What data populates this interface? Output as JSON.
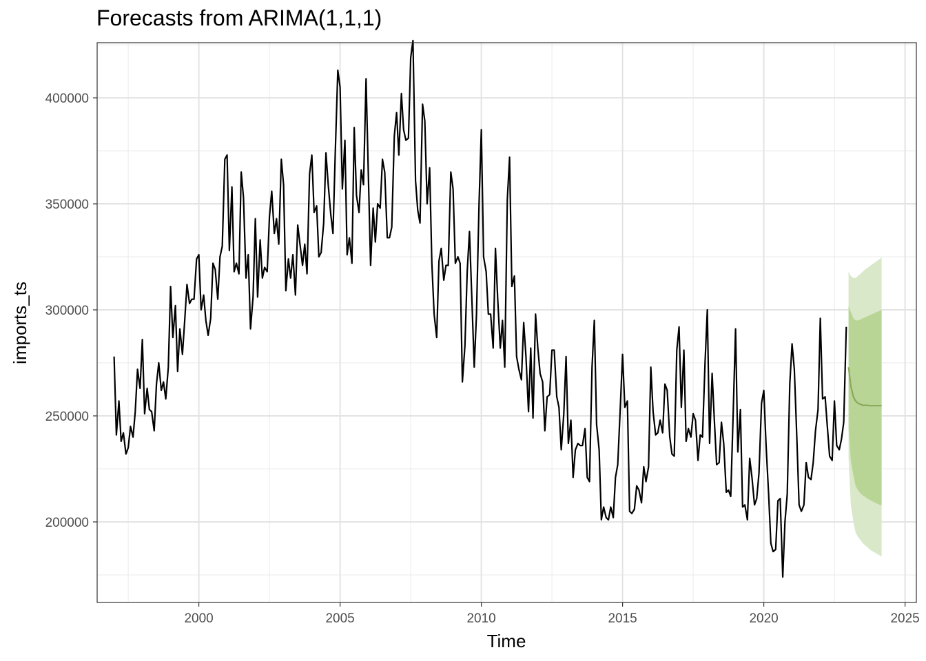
{
  "chart_data": {
    "type": "line",
    "title": "Forecasts from ARIMA(1,1,1)",
    "xlabel": "Time",
    "ylabel": "imports_ts",
    "xlim": [
      1996.4,
      2025.4
    ],
    "ylim": [
      162000,
      426000
    ],
    "x_ticks": [
      2000,
      2005,
      2010,
      2015,
      2020,
      2025
    ],
    "x_tick_labels": [
      "2000",
      "2005",
      "2010",
      "2015",
      "2020",
      "2025"
    ],
    "y_ticks": [
      200000,
      250000,
      300000,
      350000,
      400000
    ],
    "y_tick_labels": [
      "200000",
      "250000",
      "300000",
      "350000",
      "400000"
    ],
    "grid": true,
    "legend": "none",
    "colors": {
      "actual": "#000000",
      "forecast_line": "#8aa85a",
      "band_80": "#b9d596",
      "band_95": "#d9e8c8"
    },
    "series": [
      {
        "role": "actual",
        "x": [
          1997.0,
          1997.08,
          1997.17,
          1997.25,
          1997.33,
          1997.42,
          1997.5,
          1997.58,
          1997.67,
          1997.75,
          1997.83,
          1997.92,
          1998.0,
          1998.08,
          1998.17,
          1998.25,
          1998.33,
          1998.42,
          1998.5,
          1998.58,
          1998.67,
          1998.75,
          1998.83,
          1998.92,
          1999.0,
          1999.08,
          1999.17,
          1999.25,
          1999.33,
          1999.42,
          1999.5,
          1999.58,
          1999.67,
          1999.75,
          1999.83,
          1999.92,
          2000.0,
          2000.08,
          2000.17,
          2000.25,
          2000.33,
          2000.42,
          2000.5,
          2000.58,
          2000.67,
          2000.75,
          2000.83,
          2000.92,
          2001.0,
          2001.08,
          2001.17,
          2001.25,
          2001.33,
          2001.42,
          2001.5,
          2001.58,
          2001.67,
          2001.75,
          2001.83,
          2001.92,
          2002.0,
          2002.08,
          2002.17,
          2002.25,
          2002.33,
          2002.42,
          2002.5,
          2002.58,
          2002.67,
          2002.75,
          2002.83,
          2002.92,
          2003.0,
          2003.08,
          2003.17,
          2003.25,
          2003.33,
          2003.42,
          2003.5,
          2003.58,
          2003.67,
          2003.75,
          2003.83,
          2003.92,
          2004.0,
          2004.08,
          2004.17,
          2004.25,
          2004.33,
          2004.42,
          2004.5,
          2004.58,
          2004.67,
          2004.75,
          2004.83,
          2004.92,
          2005.0,
          2005.08,
          2005.17,
          2005.25,
          2005.33,
          2005.42,
          2005.5,
          2005.58,
          2005.67,
          2005.75,
          2005.83,
          2005.92,
          2006.0,
          2006.08,
          2006.17,
          2006.25,
          2006.33,
          2006.42,
          2006.5,
          2006.58,
          2006.67,
          2006.75,
          2006.83,
          2006.92,
          2007.0,
          2007.08,
          2007.17,
          2007.25,
          2007.33,
          2007.42,
          2007.5,
          2007.58,
          2007.67,
          2007.75,
          2007.83,
          2007.92,
          2008.0,
          2008.08,
          2008.17,
          2008.25,
          2008.33,
          2008.42,
          2008.5,
          2008.58,
          2008.67,
          2008.75,
          2008.83,
          2008.92,
          2009.0,
          2009.08,
          2009.17,
          2009.25,
          2009.33,
          2009.42,
          2009.5,
          2009.58,
          2009.67,
          2009.75,
          2009.83,
          2009.92,
          2010.0,
          2010.08,
          2010.17,
          2010.25,
          2010.33,
          2010.42,
          2010.5,
          2010.58,
          2010.67,
          2010.75,
          2010.83,
          2010.92,
          2011.0,
          2011.08,
          2011.17,
          2011.25,
          2011.33,
          2011.42,
          2011.5,
          2011.58,
          2011.67,
          2011.75,
          2011.83,
          2011.92,
          2012.0,
          2012.08,
          2012.17,
          2012.25,
          2012.33,
          2012.42,
          2012.5,
          2012.58,
          2012.67,
          2012.75,
          2012.83,
          2012.92,
          2013.0,
          2013.08,
          2013.17,
          2013.25,
          2013.33,
          2013.42,
          2013.5,
          2013.58,
          2013.67,
          2013.75,
          2013.83,
          2013.92,
          2014.0,
          2014.08,
          2014.17,
          2014.25,
          2014.33,
          2014.42,
          2014.5,
          2014.58,
          2014.67,
          2014.75,
          2014.83,
          2014.92,
          2015.0,
          2015.08,
          2015.17,
          2015.25,
          2015.33,
          2015.42,
          2015.5,
          2015.58,
          2015.67,
          2015.75,
          2015.83,
          2015.92,
          2016.0,
          2016.08,
          2016.17,
          2016.25,
          2016.33,
          2016.42,
          2016.5,
          2016.58,
          2016.67,
          2016.75,
          2016.83,
          2016.92,
          2017.0,
          2017.08,
          2017.17,
          2017.25,
          2017.33,
          2017.42,
          2017.5,
          2017.58,
          2017.67,
          2017.75,
          2017.83,
          2017.92,
          2018.0,
          2018.08,
          2018.17,
          2018.25,
          2018.33,
          2018.42,
          2018.5,
          2018.58,
          2018.67,
          2018.75,
          2018.83,
          2018.92,
          2019.0,
          2019.08,
          2019.17,
          2019.25,
          2019.33,
          2019.42,
          2019.5,
          2019.58,
          2019.67,
          2019.75,
          2019.83,
          2019.92,
          2020.0,
          2020.08,
          2020.17,
          2020.25,
          2020.33,
          2020.42,
          2020.5,
          2020.58,
          2020.67,
          2020.75,
          2020.83,
          2020.92,
          2021.0,
          2021.08,
          2021.17,
          2021.25,
          2021.33,
          2021.42,
          2021.5,
          2021.58,
          2021.67,
          2021.75,
          2021.83,
          2021.92,
          2022.0,
          2022.08,
          2022.17,
          2022.25,
          2022.33,
          2022.42,
          2022.5,
          2022.58,
          2022.67,
          2022.75,
          2022.83,
          2022.92
        ],
        "y": [
          278000,
          241000,
          257000,
          238000,
          242000,
          232000,
          235000,
          245000,
          240000,
          252000,
          272000,
          263000,
          286000,
          251000,
          263000,
          253000,
          252000,
          243000,
          265000,
          275000,
          262000,
          266000,
          258000,
          273000,
          311000,
          287000,
          302000,
          271000,
          291000,
          279000,
          295000,
          312000,
          303000,
          305000,
          305000,
          324000,
          326000,
          300000,
          307000,
          295000,
          288000,
          296000,
          322000,
          319000,
          305000,
          325000,
          330000,
          371000,
          373000,
          328000,
          358000,
          318000,
          322000,
          317000,
          365000,
          353000,
          315000,
          326000,
          291000,
          306000,
          343000,
          306000,
          333000,
          315000,
          320000,
          318000,
          344000,
          356000,
          336000,
          343000,
          331000,
          371000,
          359000,
          309000,
          324000,
          315000,
          326000,
          307000,
          340000,
          331000,
          321000,
          331000,
          317000,
          364000,
          373000,
          346000,
          349000,
          325000,
          327000,
          341000,
          374000,
          359000,
          345000,
          336000,
          374000,
          413000,
          405000,
          357000,
          380000,
          326000,
          334000,
          322000,
          386000,
          354000,
          346000,
          366000,
          359000,
          409000,
          364000,
          321000,
          348000,
          332000,
          350000,
          348000,
          371000,
          365000,
          334000,
          334000,
          339000,
          382000,
          393000,
          373000,
          402000,
          385000,
          380000,
          381000,
          419000,
          427000,
          361000,
          347000,
          341000,
          397000,
          389000,
          350000,
          367000,
          322000,
          298000,
          287000,
          323000,
          329000,
          314000,
          321000,
          321000,
          365000,
          357000,
          322000,
          325000,
          322000,
          266000,
          283000,
          318000,
          337000,
          303000,
          273000,
          298000,
          350000,
          385000,
          325000,
          318000,
          298000,
          298000,
          282000,
          329000,
          305000,
          282000,
          295000,
          273000,
          352000,
          372000,
          311000,
          316000,
          278000,
          272000,
          267000,
          294000,
          278000,
          252000,
          282000,
          249000,
          298000,
          282000,
          270000,
          266000,
          243000,
          259000,
          260000,
          281000,
          281000,
          259000,
          254000,
          234000,
          251000,
          278000,
          237000,
          248000,
          221000,
          234000,
          237000,
          236000,
          236000,
          244000,
          221000,
          219000,
          273000,
          295000,
          246000,
          234000,
          201000,
          207000,
          202000,
          201000,
          207000,
          202000,
          221000,
          227000,
          254000,
          279000,
          254000,
          257000,
          205000,
          204000,
          206000,
          217000,
          215000,
          209000,
          226000,
          219000,
          226000,
          273000,
          252000,
          241000,
          242000,
          248000,
          242000,
          265000,
          262000,
          240000,
          232000,
          231000,
          281000,
          292000,
          254000,
          281000,
          238000,
          244000,
          240000,
          251000,
          248000,
          229000,
          241000,
          240000,
          275000,
          300000,
          237000,
          270000,
          248000,
          227000,
          228000,
          247000,
          237000,
          214000,
          215000,
          212000,
          253000,
          291000,
          233000,
          253000,
          207000,
          208000,
          201000,
          230000,
          221000,
          208000,
          211000,
          223000,
          256000,
          262000,
          236000,
          213000,
          190000,
          186000,
          187000,
          210000,
          211000,
          174000,
          200000,
          213000,
          265000,
          284000,
          272000,
          239000,
          208000,
          205000,
          208000,
          228000,
          221000,
          220000,
          228000,
          243000,
          253000,
          296000,
          258000,
          259000,
          245000,
          231000,
          229000,
          257000,
          236000,
          234000,
          239000,
          247000,
          292000
        ]
      },
      {
        "role": "forecast",
        "x": [
          2023.0,
          2023.08,
          2023.17,
          2023.25,
          2023.33,
          2023.42,
          2023.5,
          2023.58,
          2023.67,
          2023.75,
          2023.83,
          2023.92,
          2024.0,
          2024.08,
          2024.17
        ],
        "y": [
          273000,
          264000,
          259000,
          257000,
          256000,
          255500,
          255000,
          255000,
          255000,
          254800,
          254800,
          254800,
          254800,
          254800,
          254800
        ],
        "lo80": [
          244000,
          229000,
          222000,
          217000,
          215000,
          213500,
          212500,
          211800,
          211000,
          210400,
          209800,
          209200,
          208700,
          208200,
          207800
        ],
        "hi80": [
          302000,
          299000,
          296000,
          295000,
          295000,
          295500,
          296000,
          296500,
          297000,
          297500,
          298000,
          298500,
          299000,
          299500,
          300000
        ],
        "lo95": [
          230000,
          208000,
          200000,
          195000,
          193000,
          191500,
          190000,
          189000,
          188000,
          187000,
          186300,
          185600,
          185000,
          184400,
          183800
        ],
        "hi95": [
          318000,
          316000,
          315000,
          315000,
          316000,
          317000,
          318000,
          319000,
          319800,
          320600,
          321400,
          322200,
          323000,
          323800,
          324600
        ]
      }
    ]
  }
}
